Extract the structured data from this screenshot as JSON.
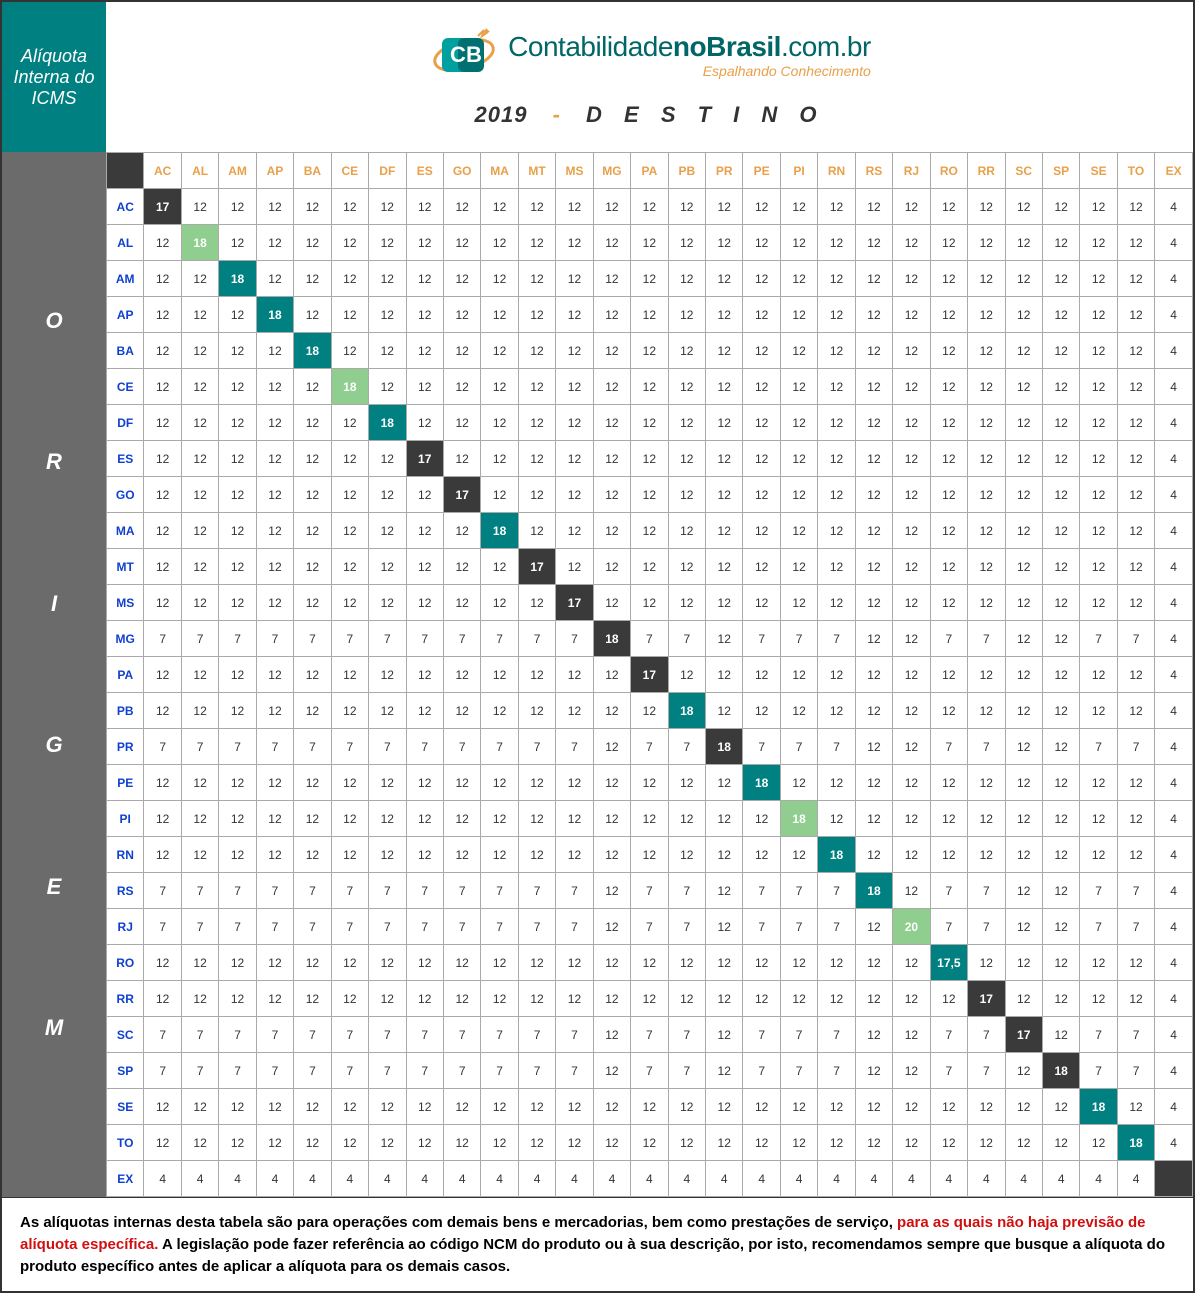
{
  "header": {
    "title_box": "Alíquota Interna do ICMS",
    "logo_text_1": "Contabilidade",
    "logo_text_2": "no",
    "logo_text_3": "Brasil",
    "logo_text_4": ".com.br",
    "logo_sub": "Espalhando Conhecimento",
    "year": "2019",
    "dash": "-",
    "destino": "D E S T I N O"
  },
  "origem_label": "ORIGEM",
  "states": [
    "AC",
    "AL",
    "AM",
    "AP",
    "BA",
    "CE",
    "DF",
    "ES",
    "GO",
    "MA",
    "MT",
    "MS",
    "MG",
    "PA",
    "PB",
    "PR",
    "PE",
    "PI",
    "RN",
    "RS",
    "RJ",
    "RO",
    "RR",
    "SC",
    "SP",
    "SE",
    "TO",
    "EX"
  ],
  "diagonal_values": [
    "17",
    "18",
    "18",
    "18",
    "18",
    "18",
    "18",
    "17",
    "17",
    "18",
    "17",
    "17",
    "18",
    "17",
    "18",
    "18",
    "18",
    "18",
    "18",
    "18",
    "20",
    "17,5",
    "17",
    "17",
    "18",
    "18",
    "18",
    ""
  ],
  "diagonal_styles": [
    "dark",
    "green",
    "teal",
    "teal",
    "teal",
    "green",
    "teal",
    "dark",
    "dark",
    "teal",
    "dark",
    "dark",
    "dark",
    "dark",
    "teal",
    "dark",
    "teal",
    "green",
    "teal",
    "teal",
    "green",
    "teal",
    "dark",
    "dark",
    "dark",
    "teal",
    "teal",
    "dark"
  ],
  "rows": [
    [
      "17",
      "12",
      "12",
      "12",
      "12",
      "12",
      "12",
      "12",
      "12",
      "12",
      "12",
      "12",
      "12",
      "12",
      "12",
      "12",
      "12",
      "12",
      "12",
      "12",
      "12",
      "12",
      "12",
      "12",
      "12",
      "12",
      "12",
      "4"
    ],
    [
      "12",
      "18",
      "12",
      "12",
      "12",
      "12",
      "12",
      "12",
      "12",
      "12",
      "12",
      "12",
      "12",
      "12",
      "12",
      "12",
      "12",
      "12",
      "12",
      "12",
      "12",
      "12",
      "12",
      "12",
      "12",
      "12",
      "12",
      "4"
    ],
    [
      "12",
      "12",
      "18",
      "12",
      "12",
      "12",
      "12",
      "12",
      "12",
      "12",
      "12",
      "12",
      "12",
      "12",
      "12",
      "12",
      "12",
      "12",
      "12",
      "12",
      "12",
      "12",
      "12",
      "12",
      "12",
      "12",
      "12",
      "4"
    ],
    [
      "12",
      "12",
      "12",
      "18",
      "12",
      "12",
      "12",
      "12",
      "12",
      "12",
      "12",
      "12",
      "12",
      "12",
      "12",
      "12",
      "12",
      "12",
      "12",
      "12",
      "12",
      "12",
      "12",
      "12",
      "12",
      "12",
      "12",
      "4"
    ],
    [
      "12",
      "12",
      "12",
      "12",
      "18",
      "12",
      "12",
      "12",
      "12",
      "12",
      "12",
      "12",
      "12",
      "12",
      "12",
      "12",
      "12",
      "12",
      "12",
      "12",
      "12",
      "12",
      "12",
      "12",
      "12",
      "12",
      "12",
      "4"
    ],
    [
      "12",
      "12",
      "12",
      "12",
      "12",
      "18",
      "12",
      "12",
      "12",
      "12",
      "12",
      "12",
      "12",
      "12",
      "12",
      "12",
      "12",
      "12",
      "12",
      "12",
      "12",
      "12",
      "12",
      "12",
      "12",
      "12",
      "12",
      "4"
    ],
    [
      "12",
      "12",
      "12",
      "12",
      "12",
      "12",
      "18",
      "12",
      "12",
      "12",
      "12",
      "12",
      "12",
      "12",
      "12",
      "12",
      "12",
      "12",
      "12",
      "12",
      "12",
      "12",
      "12",
      "12",
      "12",
      "12",
      "12",
      "4"
    ],
    [
      "12",
      "12",
      "12",
      "12",
      "12",
      "12",
      "12",
      "17",
      "12",
      "12",
      "12",
      "12",
      "12",
      "12",
      "12",
      "12",
      "12",
      "12",
      "12",
      "12",
      "12",
      "12",
      "12",
      "12",
      "12",
      "12",
      "12",
      "4"
    ],
    [
      "12",
      "12",
      "12",
      "12",
      "12",
      "12",
      "12",
      "12",
      "17",
      "12",
      "12",
      "12",
      "12",
      "12",
      "12",
      "12",
      "12",
      "12",
      "12",
      "12",
      "12",
      "12",
      "12",
      "12",
      "12",
      "12",
      "12",
      "4"
    ],
    [
      "12",
      "12",
      "12",
      "12",
      "12",
      "12",
      "12",
      "12",
      "12",
      "18",
      "12",
      "12",
      "12",
      "12",
      "12",
      "12",
      "12",
      "12",
      "12",
      "12",
      "12",
      "12",
      "12",
      "12",
      "12",
      "12",
      "12",
      "4"
    ],
    [
      "12",
      "12",
      "12",
      "12",
      "12",
      "12",
      "12",
      "12",
      "12",
      "12",
      "17",
      "12",
      "12",
      "12",
      "12",
      "12",
      "12",
      "12",
      "12",
      "12",
      "12",
      "12",
      "12",
      "12",
      "12",
      "12",
      "12",
      "4"
    ],
    [
      "12",
      "12",
      "12",
      "12",
      "12",
      "12",
      "12",
      "12",
      "12",
      "12",
      "12",
      "17",
      "12",
      "12",
      "12",
      "12",
      "12",
      "12",
      "12",
      "12",
      "12",
      "12",
      "12",
      "12",
      "12",
      "12",
      "12",
      "4"
    ],
    [
      "7",
      "7",
      "7",
      "7",
      "7",
      "7",
      "7",
      "7",
      "7",
      "7",
      "7",
      "7",
      "18",
      "7",
      "7",
      "12",
      "7",
      "7",
      "7",
      "12",
      "12",
      "7",
      "7",
      "12",
      "12",
      "7",
      "7",
      "4"
    ],
    [
      "12",
      "12",
      "12",
      "12",
      "12",
      "12",
      "12",
      "12",
      "12",
      "12",
      "12",
      "12",
      "12",
      "17",
      "12",
      "12",
      "12",
      "12",
      "12",
      "12",
      "12",
      "12",
      "12",
      "12",
      "12",
      "12",
      "12",
      "4"
    ],
    [
      "12",
      "12",
      "12",
      "12",
      "12",
      "12",
      "12",
      "12",
      "12",
      "12",
      "12",
      "12",
      "12",
      "12",
      "18",
      "12",
      "12",
      "12",
      "12",
      "12",
      "12",
      "12",
      "12",
      "12",
      "12",
      "12",
      "12",
      "4"
    ],
    [
      "7",
      "7",
      "7",
      "7",
      "7",
      "7",
      "7",
      "7",
      "7",
      "7",
      "7",
      "7",
      "12",
      "7",
      "7",
      "18",
      "7",
      "7",
      "7",
      "12",
      "12",
      "7",
      "7",
      "12",
      "12",
      "7",
      "7",
      "4"
    ],
    [
      "12",
      "12",
      "12",
      "12",
      "12",
      "12",
      "12",
      "12",
      "12",
      "12",
      "12",
      "12",
      "12",
      "12",
      "12",
      "12",
      "18",
      "12",
      "12",
      "12",
      "12",
      "12",
      "12",
      "12",
      "12",
      "12",
      "12",
      "4"
    ],
    [
      "12",
      "12",
      "12",
      "12",
      "12",
      "12",
      "12",
      "12",
      "12",
      "12",
      "12",
      "12",
      "12",
      "12",
      "12",
      "12",
      "12",
      "18",
      "12",
      "12",
      "12",
      "12",
      "12",
      "12",
      "12",
      "12",
      "12",
      "4"
    ],
    [
      "12",
      "12",
      "12",
      "12",
      "12",
      "12",
      "12",
      "12",
      "12",
      "12",
      "12",
      "12",
      "12",
      "12",
      "12",
      "12",
      "12",
      "12",
      "18",
      "12",
      "12",
      "12",
      "12",
      "12",
      "12",
      "12",
      "12",
      "4"
    ],
    [
      "7",
      "7",
      "7",
      "7",
      "7",
      "7",
      "7",
      "7",
      "7",
      "7",
      "7",
      "7",
      "12",
      "7",
      "7",
      "12",
      "7",
      "7",
      "7",
      "18",
      "12",
      "7",
      "7",
      "12",
      "12",
      "7",
      "7",
      "4"
    ],
    [
      "7",
      "7",
      "7",
      "7",
      "7",
      "7",
      "7",
      "7",
      "7",
      "7",
      "7",
      "7",
      "12",
      "7",
      "7",
      "12",
      "7",
      "7",
      "7",
      "12",
      "20",
      "7",
      "7",
      "12",
      "12",
      "7",
      "7",
      "4"
    ],
    [
      "12",
      "12",
      "12",
      "12",
      "12",
      "12",
      "12",
      "12",
      "12",
      "12",
      "12",
      "12",
      "12",
      "12",
      "12",
      "12",
      "12",
      "12",
      "12",
      "12",
      "12",
      "17,5",
      "12",
      "12",
      "12",
      "12",
      "12",
      "4"
    ],
    [
      "12",
      "12",
      "12",
      "12",
      "12",
      "12",
      "12",
      "12",
      "12",
      "12",
      "12",
      "12",
      "12",
      "12",
      "12",
      "12",
      "12",
      "12",
      "12",
      "12",
      "12",
      "12",
      "17",
      "12",
      "12",
      "12",
      "12",
      "4"
    ],
    [
      "7",
      "7",
      "7",
      "7",
      "7",
      "7",
      "7",
      "7",
      "7",
      "7",
      "7",
      "7",
      "12",
      "7",
      "7",
      "12",
      "7",
      "7",
      "7",
      "12",
      "12",
      "7",
      "7",
      "17",
      "12",
      "7",
      "7",
      "4"
    ],
    [
      "7",
      "7",
      "7",
      "7",
      "7",
      "7",
      "7",
      "7",
      "7",
      "7",
      "7",
      "7",
      "12",
      "7",
      "7",
      "12",
      "7",
      "7",
      "7",
      "12",
      "12",
      "7",
      "7",
      "12",
      "18",
      "7",
      "7",
      "4"
    ],
    [
      "12",
      "12",
      "12",
      "12",
      "12",
      "12",
      "12",
      "12",
      "12",
      "12",
      "12",
      "12",
      "12",
      "12",
      "12",
      "12",
      "12",
      "12",
      "12",
      "12",
      "12",
      "12",
      "12",
      "12",
      "12",
      "18",
      "12",
      "4"
    ],
    [
      "12",
      "12",
      "12",
      "12",
      "12",
      "12",
      "12",
      "12",
      "12",
      "12",
      "12",
      "12",
      "12",
      "12",
      "12",
      "12",
      "12",
      "12",
      "12",
      "12",
      "12",
      "12",
      "12",
      "12",
      "12",
      "12",
      "18",
      "4"
    ],
    [
      "4",
      "4",
      "4",
      "4",
      "4",
      "4",
      "4",
      "4",
      "4",
      "4",
      "4",
      "4",
      "4",
      "4",
      "4",
      "4",
      "4",
      "4",
      "4",
      "4",
      "4",
      "4",
      "4",
      "4",
      "4",
      "4",
      "4",
      ""
    ]
  ],
  "footer": {
    "p1a": "As alíquotas internas desta tabela são para operações com demais bens e mercadorias, bem como prestações de serviço, ",
    "p1b": "para as quais não haja previsão de alíquota específica.",
    "p1c": "  A legislação pode fazer referência ao código NCM do produto ou à sua descrição, por isto, recomendamos sempre que busque a alíquota do produto específico antes de aplicar  a alíquota para os demais casos."
  },
  "colors": {
    "teal": "#008080",
    "dark": "#3a3a3a",
    "green": "#8fce8f",
    "gray_side": "#6b6b6b",
    "orange": "#e8a04a",
    "blue_row": "#1040d0",
    "red": "#d01010"
  }
}
